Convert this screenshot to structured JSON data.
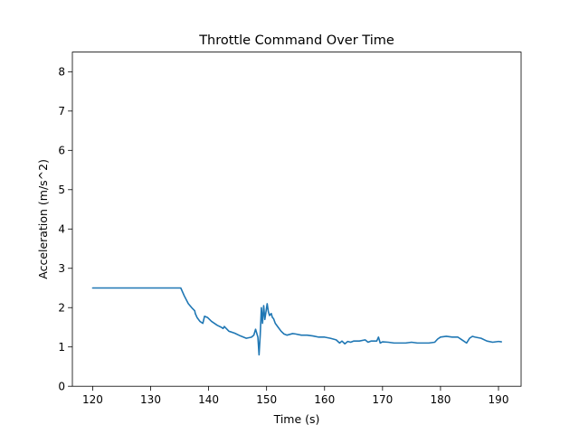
{
  "chart_data": {
    "type": "line",
    "title": "Throttle Command Over Time",
    "xlabel": "Time (s)",
    "ylabel": "Acceleration (m/s^2)",
    "xlim": [
      116.5,
      193.9
    ],
    "ylim": [
      0,
      8.5
    ],
    "xticks": [
      120,
      130,
      140,
      150,
      160,
      170,
      180,
      190
    ],
    "yticks": [
      0,
      1,
      2,
      3,
      4,
      5,
      6,
      7,
      8
    ],
    "grid": false,
    "legend": "none",
    "series": [
      {
        "color": "#1f77b4",
        "x": [
          120,
          125,
          130,
          135.2,
          135.8,
          136.5,
          137.2,
          137.6,
          137.7,
          138.0,
          138.5,
          139.0,
          139.3,
          139.8,
          140.5,
          141.5,
          142.2,
          142.5,
          142.7,
          143.5,
          144.5,
          145.5,
          146.5,
          147.4,
          147.8,
          148.1,
          148.5,
          148.7,
          148.9,
          149.1,
          149.3,
          149.5,
          149.7,
          149.9,
          150.1,
          150.3,
          150.5,
          150.8,
          151.0,
          151.2,
          151.5,
          152.0,
          152.5,
          153.0,
          153.5,
          154.0,
          154.5,
          155.0,
          156.0,
          157.0,
          158.0,
          159.0,
          160.0,
          161.0,
          162.0,
          162.6,
          163.0,
          163.5,
          164.0,
          164.5,
          165.0,
          166.0,
          167.0,
          167.5,
          168.0,
          169.0,
          169.3,
          169.6,
          170.0,
          171.0,
          172.0,
          173.0,
          174.0,
          175.0,
          176.0,
          177.0,
          178.0,
          179.0,
          179.5,
          180.0,
          181.0,
          182.0,
          183.0,
          184.0,
          184.5,
          185.0,
          185.5,
          186.0,
          187.0,
          188.0,
          189.0,
          190.0,
          190.5
        ],
        "y": [
          2.5,
          2.5,
          2.5,
          2.5,
          2.3,
          2.1,
          1.98,
          1.92,
          1.85,
          1.75,
          1.65,
          1.6,
          1.78,
          1.75,
          1.65,
          1.55,
          1.5,
          1.47,
          1.52,
          1.4,
          1.35,
          1.28,
          1.22,
          1.25,
          1.3,
          1.45,
          1.25,
          0.8,
          1.3,
          2.0,
          1.6,
          2.05,
          1.7,
          1.9,
          2.1,
          1.9,
          1.8,
          1.85,
          1.75,
          1.72,
          1.6,
          1.5,
          1.4,
          1.33,
          1.3,
          1.32,
          1.34,
          1.33,
          1.3,
          1.3,
          1.28,
          1.25,
          1.25,
          1.22,
          1.18,
          1.1,
          1.15,
          1.08,
          1.14,
          1.12,
          1.15,
          1.15,
          1.18,
          1.12,
          1.15,
          1.15,
          1.25,
          1.1,
          1.13,
          1.12,
          1.1,
          1.1,
          1.1,
          1.12,
          1.1,
          1.1,
          1.1,
          1.12,
          1.2,
          1.25,
          1.27,
          1.25,
          1.25,
          1.15,
          1.1,
          1.22,
          1.27,
          1.25,
          1.22,
          1.15,
          1.12,
          1.14,
          1.13
        ]
      }
    ]
  }
}
